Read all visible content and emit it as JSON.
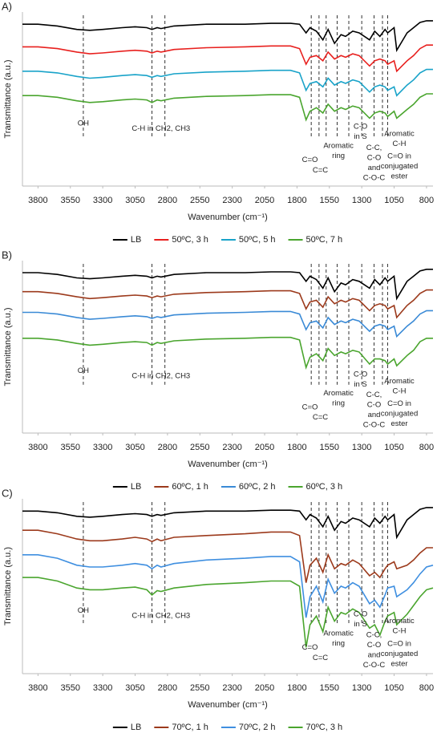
{
  "chart_data": [
    {
      "type": "line",
      "title": "A)",
      "xlabel": "Wavenumber (cm⁻¹)",
      "ylabel": "Transmittance (a.u.)",
      "xlim": [
        3920,
        750
      ],
      "ylim": [
        0,
        100
      ],
      "xticks": [
        3800,
        3550,
        3300,
        3050,
        2800,
        2550,
        2300,
        2050,
        1800,
        1550,
        1300,
        1050,
        800
      ],
      "x": [
        3920,
        3800,
        3650,
        3500,
        3400,
        3300,
        3150,
        3050,
        2960,
        2920,
        2880,
        2850,
        2750,
        2500,
        2200,
        2000,
        1850,
        1780,
        1730,
        1700,
        1650,
        1600,
        1560,
        1510,
        1460,
        1425,
        1370,
        1320,
        1240,
        1200,
        1160,
        1120,
        1100,
        1050,
        1030,
        950,
        900,
        850,
        800,
        750
      ],
      "series": [
        {
          "name": "LB",
          "color": "#000000",
          "values": [
            93,
            93,
            92,
            90,
            89.5,
            90,
            91,
            91.5,
            91,
            90,
            91,
            90.5,
            92,
            93,
            93,
            93.5,
            93.5,
            93,
            88,
            91,
            89,
            84,
            90,
            82,
            87,
            86,
            89,
            88,
            84,
            89,
            86,
            90,
            88,
            91,
            78,
            88,
            91,
            94,
            95,
            95
          ]
        },
        {
          "name": "50ºC, 3 h",
          "color": "#e8201e",
          "values": [
            80,
            80,
            79,
            77,
            76,
            76.5,
            77.5,
            78,
            77.5,
            76.5,
            77.5,
            77,
            78.5,
            79.5,
            80,
            80.5,
            80.5,
            79,
            70,
            74,
            75,
            72,
            77,
            73,
            75,
            74,
            76,
            75,
            69,
            72,
            73,
            72,
            70,
            72,
            66,
            72,
            75,
            79,
            81,
            81
          ]
        },
        {
          "name": "50ºC, 5 h",
          "color": "#19a3c9",
          "values": [
            66,
            66,
            65,
            63,
            62,
            62.5,
            63.5,
            64,
            63.5,
            62.5,
            63.5,
            63,
            64.5,
            65.5,
            66,
            66.5,
            66.5,
            65,
            55,
            59,
            60,
            57,
            62,
            58,
            60,
            59,
            61,
            60,
            54,
            57,
            58,
            57,
            55,
            57,
            52,
            58,
            61,
            65,
            67,
            67
          ]
        },
        {
          "name": "50ºC, 7 h",
          "color": "#4aa52e",
          "values": [
            52,
            52,
            51,
            49,
            48,
            48.5,
            49.5,
            50,
            49.5,
            48,
            49.5,
            49,
            50.5,
            51.5,
            52,
            52.5,
            52.5,
            51,
            38,
            43,
            45,
            42,
            47,
            43,
            45,
            44,
            46,
            45,
            39,
            42,
            43,
            42,
            40,
            43,
            39,
            44,
            47,
            51,
            53,
            53
          ]
        }
      ],
      "vlines": [
        3450,
        2920,
        2820,
        1690,
        1630,
        1575,
        1490,
        1400,
        1300,
        1205,
        1140,
        1100
      ],
      "annotations": [
        {
          "x": 3450,
          "lines": [
            "OH"
          ]
        },
        {
          "x": 2850,
          "lines": [
            "C-H in CH2, CH3"
          ]
        },
        {
          "x": 1700,
          "lines": [
            "C=O"
          ]
        },
        {
          "x": 1620,
          "lines": [
            "C=C"
          ]
        },
        {
          "x": 1480,
          "lines": [
            "Aromatic",
            "ring"
          ]
        },
        {
          "x": 1310,
          "lines": [
            "C-O",
            "in S"
          ]
        },
        {
          "x": 1205,
          "lines": [
            "C-C,",
            "C-O",
            "and",
            "C-O-C"
          ]
        },
        {
          "x": 1010,
          "lines": [
            "Aromatic",
            "C-H"
          ]
        },
        {
          "x": 1010,
          "lines": [
            "C=O in",
            "conjugated",
            "ester"
          ]
        }
      ]
    },
    {
      "type": "line",
      "title": "B)",
      "xlabel": "Wavenumber (cm⁻¹)",
      "ylabel": "Transmittance (a.u.)",
      "xlim": [
        3920,
        750
      ],
      "ylim": [
        0,
        100
      ],
      "xticks": [
        3800,
        3550,
        3300,
        3050,
        2800,
        2550,
        2300,
        2050,
        1800,
        1550,
        1300,
        1050,
        800
      ],
      "x": [
        3920,
        3800,
        3650,
        3500,
        3400,
        3300,
        3150,
        3050,
        2960,
        2920,
        2880,
        2850,
        2750,
        2500,
        2200,
        2000,
        1850,
        1780,
        1730,
        1700,
        1650,
        1600,
        1560,
        1510,
        1460,
        1425,
        1370,
        1320,
        1240,
        1200,
        1160,
        1120,
        1100,
        1050,
        1030,
        950,
        900,
        850,
        800,
        750
      ],
      "series": [
        {
          "name": "LB",
          "color": "#000000",
          "values": [
            93,
            93,
            92,
            90,
            89.5,
            90,
            91,
            91.5,
            91,
            90,
            91,
            90.5,
            92,
            93,
            93,
            93.5,
            93.5,
            93,
            88,
            91,
            89,
            84,
            90,
            82,
            87,
            86,
            89,
            88,
            84,
            89,
            86,
            90,
            88,
            91,
            78,
            88,
            91,
            94,
            95,
            95
          ]
        },
        {
          "name": "60ºC, 1 h",
          "color": "#9c3a1c",
          "values": [
            82,
            82,
            81,
            79,
            78,
            78.5,
            79.5,
            80,
            79.5,
            78.5,
            79.5,
            79,
            80.5,
            81.5,
            82,
            82.5,
            82.5,
            81,
            72,
            76,
            77,
            73,
            79,
            75,
            77,
            76,
            78,
            77,
            71,
            74,
            75,
            74,
            72,
            74,
            67,
            74,
            77,
            81,
            83,
            83
          ]
        },
        {
          "name": "60ºC, 2 h",
          "color": "#3a8ad6",
          "values": [
            70,
            70,
            69,
            67,
            66,
            66.5,
            67.5,
            68,
            67.5,
            66.5,
            67.5,
            67,
            68.5,
            69.5,
            70,
            70.5,
            70.5,
            69,
            60,
            64,
            65,
            61,
            67,
            63,
            65,
            64,
            66,
            65,
            59,
            62,
            63,
            62,
            60,
            62,
            56,
            62,
            65,
            69,
            71,
            71
          ]
        },
        {
          "name": "60ºC, 3 h",
          "color": "#4aa52e",
          "values": [
            55,
            55,
            54,
            52,
            51,
            51.5,
            52.5,
            53,
            52.5,
            51,
            52.5,
            52,
            53.5,
            54.5,
            55,
            55.5,
            55.5,
            54,
            38,
            44,
            46,
            42,
            49,
            45,
            47,
            46,
            48,
            47,
            40,
            43,
            43,
            42,
            40,
            43,
            39,
            45,
            48,
            53,
            55,
            55
          ]
        }
      ],
      "vlines": [
        3450,
        2920,
        2820,
        1690,
        1630,
        1575,
        1490,
        1400,
        1300,
        1205,
        1140,
        1100
      ],
      "annotations": [
        {
          "x": 3450,
          "lines": [
            "OH"
          ]
        },
        {
          "x": 2850,
          "lines": [
            "C-H in CH2, CH3"
          ]
        },
        {
          "x": 1700,
          "lines": [
            "C=O"
          ]
        },
        {
          "x": 1620,
          "lines": [
            "C=C"
          ]
        },
        {
          "x": 1480,
          "lines": [
            "Aromatic",
            "ring"
          ]
        },
        {
          "x": 1310,
          "lines": [
            "C-O",
            "in S"
          ]
        },
        {
          "x": 1205,
          "lines": [
            "C-C,",
            "C-O",
            "and",
            "C-O-C"
          ]
        },
        {
          "x": 1010,
          "lines": [
            "Aromatic",
            "C-H"
          ]
        },
        {
          "x": 1010,
          "lines": [
            "C=O in",
            "conjugated",
            "ester"
          ]
        }
      ]
    },
    {
      "type": "line",
      "title": "C)",
      "xlabel": "Wavenumber (cm⁻¹)",
      "ylabel": "Transmittance (a.u.)",
      "xlim": [
        3920,
        750
      ],
      "ylim": [
        0,
        100
      ],
      "xticks": [
        3800,
        3550,
        3300,
        3050,
        2800,
        2550,
        2300,
        2050,
        1800,
        1550,
        1300,
        1050,
        800
      ],
      "x": [
        3920,
        3800,
        3650,
        3500,
        3400,
        3300,
        3150,
        3050,
        2960,
        2920,
        2880,
        2850,
        2750,
        2500,
        2200,
        2000,
        1850,
        1780,
        1730,
        1700,
        1650,
        1600,
        1560,
        1510,
        1460,
        1425,
        1370,
        1320,
        1240,
        1200,
        1160,
        1120,
        1100,
        1050,
        1030,
        950,
        900,
        850,
        800,
        750
      ],
      "series": [
        {
          "name": "LB",
          "color": "#000000",
          "values": [
            93,
            93,
            92,
            90,
            89.5,
            90,
            91,
            91.5,
            91,
            90,
            91,
            90.5,
            92,
            93,
            93,
            93.5,
            93.5,
            93,
            88,
            91,
            89,
            84,
            90,
            82,
            87,
            86,
            89,
            88,
            84,
            89,
            86,
            90,
            88,
            91,
            78,
            88,
            91,
            94,
            95,
            95
          ]
        },
        {
          "name": "70ºC, 1 h",
          "color": "#9c3a1c",
          "values": [
            82,
            82,
            80,
            77,
            76,
            76,
            77,
            78,
            77,
            75.5,
            77,
            76,
            78,
            79,
            80,
            81,
            81,
            79,
            52,
            62,
            66,
            58,
            68,
            60,
            63,
            62,
            65,
            63,
            56,
            58,
            55,
            60,
            62,
            64,
            60,
            62,
            65,
            69,
            72,
            72
          ]
        },
        {
          "name": "70ºC, 2 h",
          "color": "#3f8fe0",
          "values": [
            68,
            68,
            66,
            62,
            61,
            61,
            62,
            63,
            62,
            60,
            62,
            61,
            63,
            65,
            66,
            67,
            67,
            64,
            32,
            44,
            50,
            41,
            54,
            46,
            50,
            49,
            52,
            50,
            40,
            42,
            38,
            45,
            49,
            50,
            44,
            48,
            52,
            57,
            61,
            62
          ]
        },
        {
          "name": "70ºC, 3 h",
          "color": "#4aa52e",
          "values": [
            55,
            55,
            53,
            49,
            48,
            48,
            49,
            49.5,
            48,
            45,
            47.5,
            47,
            49,
            51,
            52,
            53,
            53,
            50,
            15,
            28,
            33,
            24,
            38,
            30,
            35,
            34,
            37,
            35,
            26,
            28,
            22,
            30,
            33,
            35,
            28,
            34,
            39,
            44,
            48,
            49
          ]
        }
      ],
      "vlines": [
        3450,
        2920,
        2820,
        1690,
        1630,
        1575,
        1490,
        1400,
        1300,
        1205,
        1140,
        1100
      ],
      "annotations": [
        {
          "x": 3450,
          "lines": [
            "OH"
          ]
        },
        {
          "x": 2850,
          "lines": [
            "C-H in CH2, CH3"
          ]
        },
        {
          "x": 1700,
          "lines": [
            "C=O"
          ]
        },
        {
          "x": 1620,
          "lines": [
            "C=C"
          ]
        },
        {
          "x": 1480,
          "lines": [
            "Aromatic",
            "ring"
          ]
        },
        {
          "x": 1310,
          "lines": [
            "C-O",
            "in S"
          ]
        },
        {
          "x": 1205,
          "lines": [
            "C-C,",
            "C-O",
            "and",
            "C-O-C"
          ]
        },
        {
          "x": 1010,
          "lines": [
            "Aromatic",
            "C-H"
          ]
        },
        {
          "x": 1010,
          "lines": [
            "C=O in",
            "conjugated",
            "ester"
          ]
        }
      ]
    }
  ]
}
